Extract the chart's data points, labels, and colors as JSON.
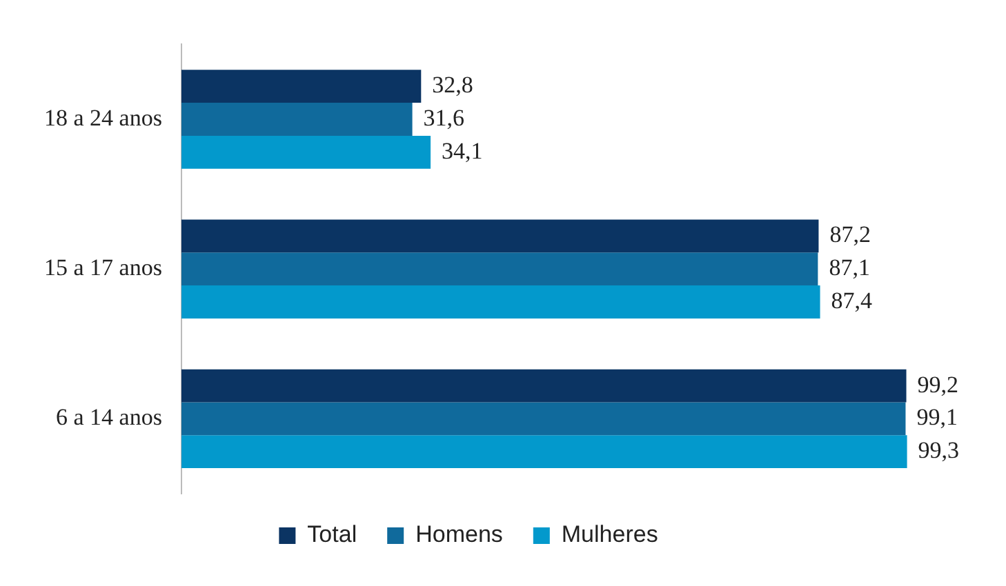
{
  "chart_data": {
    "type": "bar",
    "orientation": "horizontal",
    "categories": [
      "18 a 24 anos",
      "15 a 17 anos",
      "6 a 14 anos"
    ],
    "series": [
      {
        "name": "Total",
        "color": "#0b3463",
        "values": [
          32.8,
          87.2,
          99.2
        ],
        "value_labels": [
          "32,8",
          "87,2",
          "99,2"
        ]
      },
      {
        "name": "Homens",
        "color": "#106a9c",
        "values": [
          31.6,
          87.1,
          99.1
        ],
        "value_labels": [
          "31,6",
          "87,1",
          "99,1"
        ]
      },
      {
        "name": "Mulheres",
        "color": "#0399cc",
        "values": [
          34.1,
          87.4,
          99.3
        ],
        "value_labels": [
          "34,1",
          "87,4",
          "99,3"
        ]
      }
    ],
    "legend": "bottom"
  }
}
